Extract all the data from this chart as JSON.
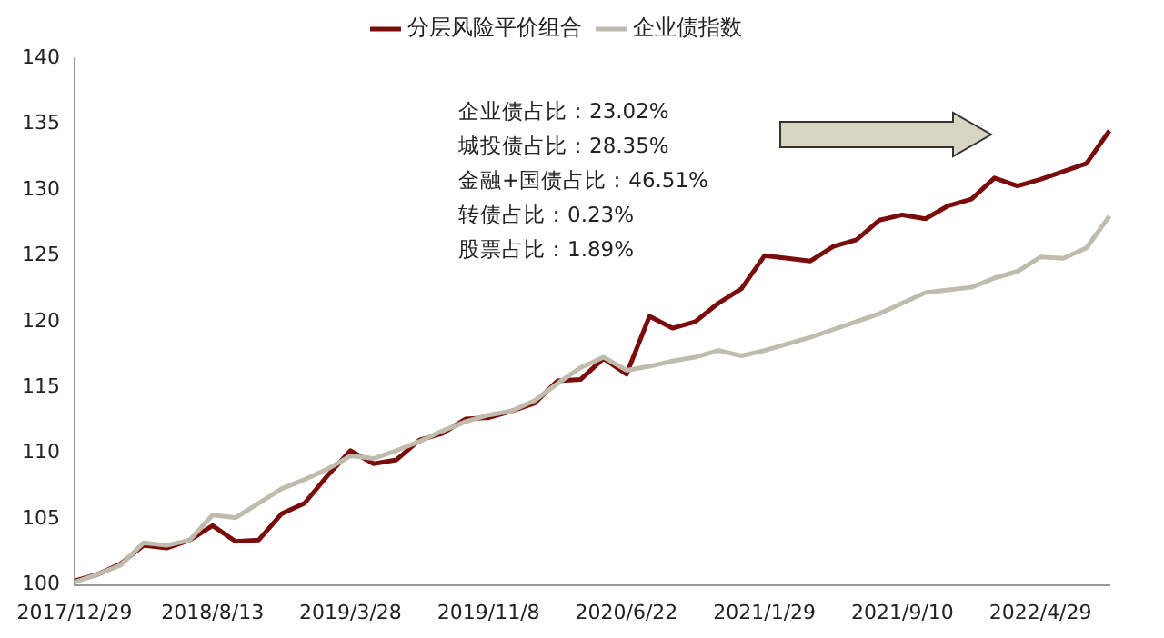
{
  "chart_data": {
    "type": "line",
    "categories": [
      "2017/12/29",
      null,
      null,
      null,
      null,
      null,
      "2018/8/13",
      null,
      null,
      null,
      null,
      null,
      "2019/3/28",
      null,
      null,
      null,
      null,
      null,
      "2019/11/8",
      null,
      null,
      null,
      null,
      null,
      "2020/6/22",
      null,
      null,
      null,
      null,
      null,
      "2021/1/29",
      null,
      null,
      null,
      null,
      null,
      "2021/9/10",
      null,
      null,
      null,
      null,
      null,
      "2022/4/29",
      null,
      null,
      null
    ],
    "series": [
      {
        "name": "分层风险平价组合",
        "color": "#7b0c0c",
        "values": [
          100.3,
          100.8,
          101.6,
          103,
          102.8,
          103.4,
          104.5,
          103.3,
          103.4,
          105.4,
          106.2,
          108.3,
          110.2,
          109.2,
          109.5,
          111,
          111.5,
          112.6,
          112.7,
          113.2,
          113.8,
          115.5,
          115.6,
          117.2,
          116,
          120.4,
          119.5,
          120,
          121.4,
          122.5,
          125,
          124.8,
          124.6,
          125.7,
          126.2,
          127.7,
          128.1,
          127.8,
          128.8,
          129.3,
          130.9,
          130.3,
          130.8,
          131.4,
          132,
          134.5
        ]
      },
      {
        "name": "企业债指数",
        "color": "#bfbcae",
        "values": [
          100.2,
          100.8,
          101.5,
          103.2,
          103,
          103.4,
          105.3,
          105.1,
          106.2,
          107.3,
          108,
          108.8,
          109.8,
          109.6,
          110.2,
          110.9,
          111.7,
          112.4,
          112.9,
          113.2,
          114,
          115.3,
          116.5,
          117.3,
          116.3,
          116.6,
          117,
          117.3,
          117.8,
          117.4,
          117.8,
          118.3,
          118.8,
          119.4,
          120,
          120.6,
          121.4,
          122.2,
          122.4,
          122.6,
          123.3,
          123.8,
          124.9,
          124.8,
          125.6,
          128
        ]
      }
    ],
    "ylim": [
      100,
      140
    ],
    "yticks": [
      100,
      105,
      110,
      115,
      120,
      125,
      130,
      135,
      140
    ],
    "grid": false,
    "legend": "top",
    "marker": "none",
    "line_style": "solid",
    "annotations": [
      "企业债占比：23.02%",
      "城投债占比：28.35%",
      "金融+国债占比：46.51%",
      "转债占比：0.23%",
      "股票占比：1.89%"
    ]
  }
}
